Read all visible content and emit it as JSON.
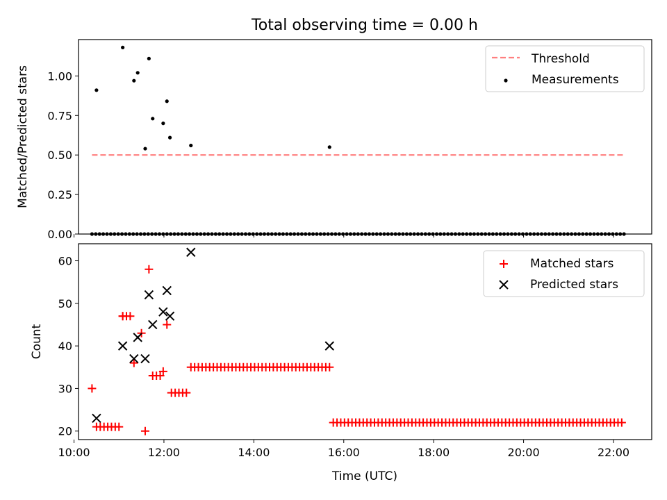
{
  "title": "Total observing time = 0.00 h",
  "colors": {
    "threshold": "#ff7f7f",
    "measurement": "#000000",
    "matched": "#ff0000",
    "predicted": "#000000"
  },
  "chart_data": [
    {
      "type": "scatter",
      "panel": "top",
      "title": "Total observing time = 0.00 h",
      "xlabel": "",
      "ylabel": "Matched/Predicted stars",
      "xlim": [
        "10:06",
        "22:51"
      ],
      "ylim": [
        0,
        1.23
      ],
      "yticks": [
        0.0,
        0.25,
        0.5,
        0.75,
        1.0
      ],
      "ytick_labels": [
        "0.00",
        "0.25",
        "0.50",
        "0.75",
        "1.00"
      ],
      "legend": {
        "position": "top-right",
        "entries": [
          "Threshold",
          "Measurements"
        ]
      },
      "series": [
        {
          "name": "Threshold",
          "kind": "dashed-line",
          "x": [
            "10:24",
            "22:15"
          ],
          "y": [
            0.5,
            0.5
          ]
        },
        {
          "name": "Measurements",
          "kind": "dot",
          "x": [
            "10:30",
            "11:05",
            "11:20",
            "11:25",
            "11:35",
            "11:40",
            "11:45",
            "11:59",
            "12:04",
            "12:08",
            "12:36",
            "15:41"
          ],
          "y": [
            0.91,
            1.18,
            0.97,
            1.02,
            0.54,
            1.11,
            0.73,
            0.7,
            0.84,
            0.61,
            0.56,
            0.55
          ],
          "zeros_x_start": "10:24",
          "zeros_x_end": "22:15",
          "zeros_step_min": 5
        }
      ]
    },
    {
      "type": "scatter",
      "panel": "bottom",
      "xlabel": "Time (UTC)",
      "ylabel": "Count",
      "xlim": [
        "10:06",
        "22:51"
      ],
      "ylim": [
        18,
        64
      ],
      "xticks": [
        "10:00",
        "12:00",
        "14:00",
        "16:00",
        "18:00",
        "20:00",
        "22:00"
      ],
      "xtick_labels": [
        "10:00",
        "12:00",
        "14:00",
        "16:00",
        "18:00",
        "20:00",
        "22:00"
      ],
      "yticks": [
        20,
        30,
        40,
        50,
        60
      ],
      "ytick_labels": [
        "20",
        "30",
        "40",
        "50",
        "60"
      ],
      "legend": {
        "position": "top-right",
        "entries": [
          "Matched stars",
          "Predicted stars"
        ]
      },
      "series": [
        {
          "name": "Matched stars",
          "marker": "+",
          "x": [
            "10:24",
            "11:05",
            "11:20",
            "11:30",
            "11:35",
            "11:40",
            "11:59",
            "12:04"
          ],
          "y": [
            30,
            47,
            36,
            43,
            20,
            58,
            34,
            45
          ],
          "runs": [
            {
              "start": "10:30",
              "end": "11:00",
              "step_min": 5,
              "y": 21
            },
            {
              "start": "11:05",
              "end": "11:15",
              "step_min": 5,
              "y": 47
            },
            {
              "start": "11:45",
              "end": "11:55",
              "step_min": 5,
              "y": 33
            },
            {
              "start": "12:10",
              "end": "12:30",
              "step_min": 5,
              "y": 29
            },
            {
              "start": "12:36",
              "end": "15:41",
              "step_min": 5,
              "y": 35
            },
            {
              "start": "15:46",
              "end": "22:15",
              "step_min": 5,
              "y": 22
            }
          ]
        },
        {
          "name": "Predicted stars",
          "marker": "x",
          "x": [
            "10:30",
            "11:05",
            "11:20",
            "11:25",
            "11:35",
            "11:40",
            "11:45",
            "11:59",
            "12:04",
            "12:08",
            "12:36",
            "15:41"
          ],
          "y": [
            23,
            40,
            37,
            42,
            37,
            52,
            45,
            48,
            53,
            47,
            62,
            40
          ]
        }
      ]
    }
  ]
}
